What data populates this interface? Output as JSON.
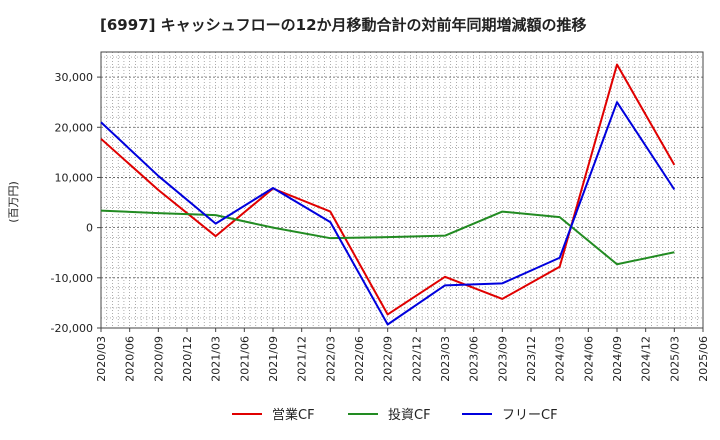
{
  "chart_data": {
    "type": "line",
    "title": "[6997]  キャッシュフローの12か月移動合計の対前年同期増減額の推移",
    "ylabel": "(百万円)",
    "xlabel": "",
    "ylim": [
      -20000,
      35000
    ],
    "yticks": [
      30000,
      20000,
      10000,
      0,
      -10000,
      -20000
    ],
    "ytick_labels": [
      "30,000",
      "20,000",
      "10,000",
      "0",
      "-10,000",
      "-20,000"
    ],
    "categories": [
      "2020/03",
      "2020/06",
      "2020/09",
      "2020/12",
      "2021/03",
      "2021/06",
      "2021/09",
      "2021/12",
      "2022/03",
      "2022/06",
      "2022/09",
      "2022/12",
      "2023/03",
      "2023/06",
      "2023/09",
      "2023/12",
      "2024/03",
      "2024/06",
      "2024/09",
      "2024/12",
      "2025/03",
      "2025/06"
    ],
    "grid": true,
    "legend_position": "bottom",
    "series": [
      {
        "name": "営業CF",
        "color": "#e00000",
        "values": [
          17700,
          null,
          7500,
          null,
          -1700,
          null,
          7800,
          null,
          3200,
          null,
          -17300,
          null,
          -9800,
          null,
          -14200,
          null,
          -7800,
          null,
          32500,
          null,
          12500,
          null
        ]
      },
      {
        "name": "投資CF",
        "color": "#228B22",
        "values": [
          3400,
          null,
          2900,
          null,
          2500,
          null,
          0,
          null,
          -2100,
          null,
          -1900,
          null,
          -1600,
          null,
          3200,
          null,
          2100,
          null,
          -7300,
          null,
          -4900,
          null
        ]
      },
      {
        "name": "フリーCF",
        "color": "#0000dd",
        "values": [
          21000,
          null,
          10300,
          null,
          800,
          null,
          7900,
          null,
          1100,
          null,
          -19300,
          null,
          -11500,
          null,
          -11100,
          null,
          -6000,
          null,
          25000,
          null,
          7600,
          null
        ]
      }
    ]
  }
}
